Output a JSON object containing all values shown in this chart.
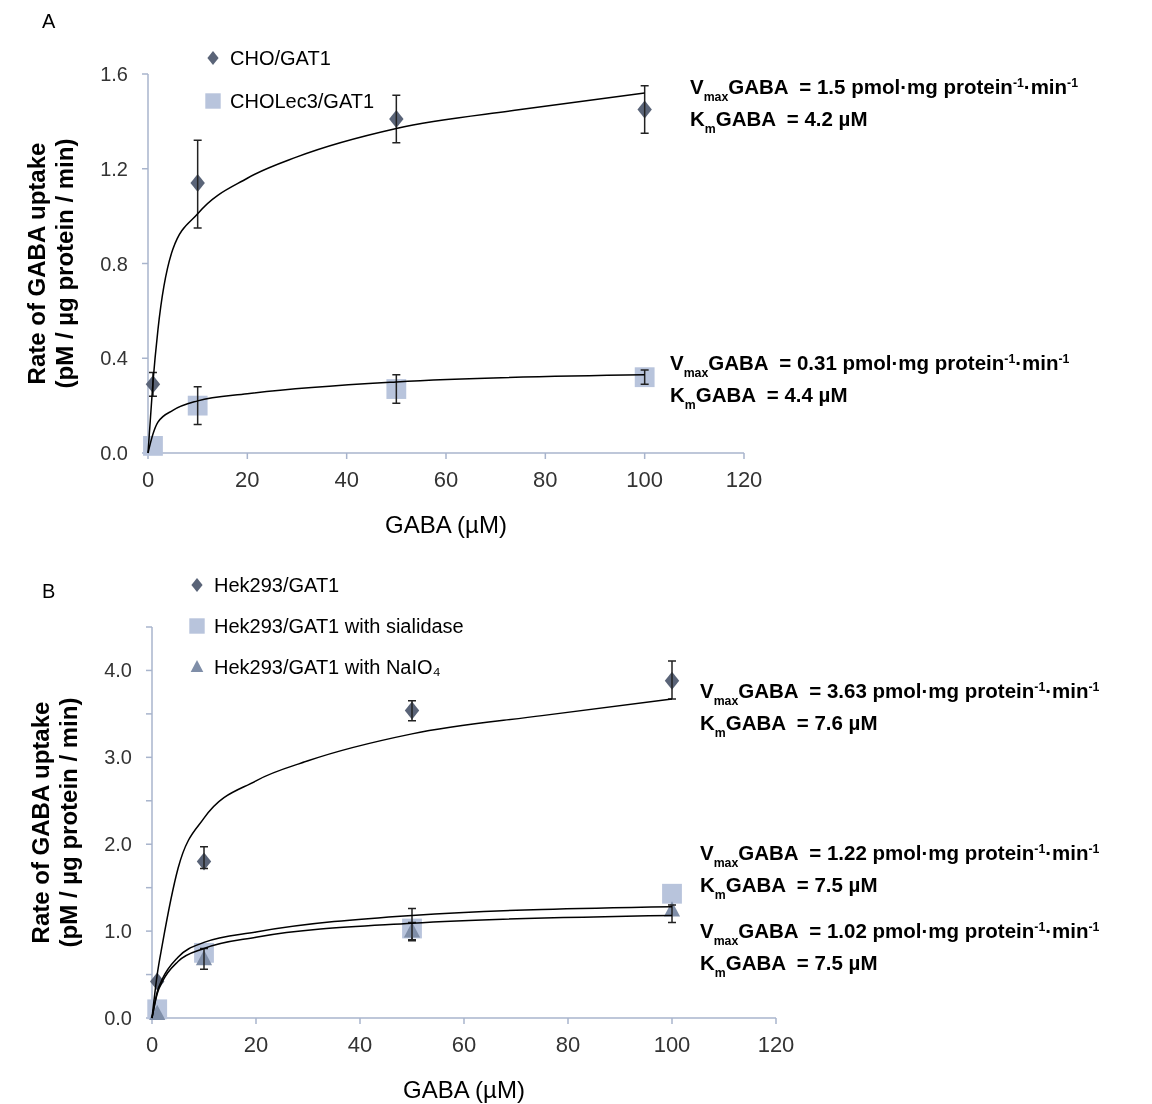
{
  "chart_data": [
    {
      "type": "scatter",
      "title": "A",
      "xlabel": "GABA (µM)",
      "ylabel": "Rate of GABA uptake\n(pM / µg protein / min)",
      "xlim": [
        0,
        120
      ],
      "xticks": [
        0,
        20,
        40,
        60,
        80,
        100,
        120
      ],
      "ylim": [
        0,
        1.6
      ],
      "yticks": [
        {
          "value": 0,
          "label": "0.0"
        },
        0.4,
        0.8,
        1.2,
        1.6
      ],
      "legend": "top left",
      "series": [
        {
          "name": "CHO/GAT1",
          "color": "#5a6478",
          "marker": "diamond",
          "x": [
            1,
            10,
            50,
            100
          ],
          "values": [
            0.29,
            1.14,
            1.41,
            1.45
          ],
          "errors": [
            [
              0.24,
              0.34
            ],
            [
              0.95,
              1.32
            ],
            [
              1.31,
              1.51
            ],
            [
              1.35,
              1.55
            ]
          ]
        },
        {
          "name": "CHOLec3/GAT1",
          "color": "#b8c4dc",
          "marker": "square",
          "x": [
            1,
            10,
            50,
            100
          ],
          "values": [
            0.03,
            0.2,
            0.27,
            0.32
          ],
          "errors": [
            null,
            [
              0.12,
              0.28
            ],
            [
              0.21,
              0.33
            ],
            [
              0.29,
              0.35
            ]
          ]
        },
        {
          "type": "line",
          "color": "#000000",
          "marker": "none",
          "x": [
            0,
            1,
            2,
            5,
            10,
            20,
            30,
            50,
            75,
            100
          ],
          "values": [
            0,
            0.3,
            0.52,
            0.86,
            1.01,
            1.16,
            1.25,
            1.37,
            1.45,
            1.52
          ]
        },
        {
          "type": "line",
          "color": "#000000",
          "marker": "none",
          "x": [
            0,
            1,
            2,
            5,
            10,
            20,
            50,
            100
          ],
          "values": [
            0,
            0.08,
            0.13,
            0.18,
            0.22,
            0.25,
            0.3,
            0.33
          ]
        }
      ],
      "annotations": [
        "V$_{max}$GABA  = 1.5 pmol·mg protein$^{-1}$·min$^{-1}$",
        "K$_{m}$GABA  = 4.2 µM",
        "V$_{max}$GABA  = 0.31 pmol·mg protein$^{-1}$·min$^{-1}$",
        "K$_{m}$GABA  = 4.4 µM"
      ]
    },
    {
      "type": "scatter",
      "title": "B",
      "xlabel": "GABA (µM)",
      "ylabel": "Rate of GABA uptake\n(pM / µg protein / min)",
      "xlim": [
        0,
        120
      ],
      "xticks": [
        0,
        20,
        40,
        60,
        80,
        100,
        120
      ],
      "ylim": [
        0,
        4.5
      ],
      "yticks": [
        {
          "value": 0,
          "label": "0.0"
        },
        {
          "value": 0.5,
          "label": null
        },
        {
          "value": 1,
          "label": "1.0"
        },
        {
          "value": 1.5,
          "label": null
        },
        {
          "value": 2,
          "label": "2.0"
        },
        {
          "value": 2.5,
          "label": null
        },
        {
          "value": 3,
          "label": "3.0"
        },
        {
          "value": 3.5,
          "label": null
        },
        {
          "value": 4,
          "label": "4.0"
        },
        {
          "value": 4.5,
          "label": null
        }
      ],
      "legend": "top left",
      "series": [
        {
          "name": "Hek293/GAT1",
          "color": "#5a6478",
          "marker": "diamond",
          "x": [
            1,
            10,
            50,
            100
          ],
          "values": [
            0.42,
            1.8,
            3.54,
            3.88
          ],
          "errors": [
            null,
            [
              1.72,
              1.97
            ],
            [
              3.42,
              3.65
            ],
            [
              3.67,
              4.11
            ]
          ]
        },
        {
          "name": "Hek293/GAT1 with sialidase",
          "color": "#b8c4dc",
          "marker": "square",
          "x": [
            1,
            10,
            50,
            100
          ],
          "values": [
            0.1,
            0.75,
            1.03,
            1.43
          ],
          "errors": [
            null,
            null,
            [
              0.9,
              1.26
            ],
            null
          ]
        },
        {
          "name": "Hek293/GAT1 with NaIO₄",
          "color": "#7f8ea8",
          "marker": "triangle",
          "x": [
            1,
            10,
            50,
            100
          ],
          "values": [
            0.05,
            0.68,
            1.0,
            1.24
          ],
          "errors": [
            null,
            [
              0.56,
              0.8
            ],
            [
              0.89,
              1.1
            ],
            [
              1.1,
              1.3
            ]
          ]
        },
        {
          "type": "line",
          "color": "#000000",
          "marker": "none",
          "x": [
            0,
            1,
            2,
            5,
            10,
            20,
            30,
            50,
            75,
            100
          ],
          "values": [
            0,
            0.5,
            0.85,
            1.72,
            2.3,
            2.73,
            2.96,
            3.27,
            3.48,
            3.67
          ]
        },
        {
          "type": "line",
          "color": "#000000",
          "marker": "none",
          "x": [
            0,
            1,
            2,
            5,
            10,
            20,
            50,
            100
          ],
          "values": [
            0,
            0.3,
            0.45,
            0.7,
            0.87,
            0.99,
            1.18,
            1.28
          ]
        },
        {
          "type": "line",
          "color": "#000000",
          "marker": "none",
          "x": [
            0,
            1,
            2,
            5,
            10,
            20,
            50,
            100
          ],
          "values": [
            0,
            0.28,
            0.42,
            0.65,
            0.8,
            0.93,
            1.09,
            1.18
          ]
        }
      ],
      "annotations": [
        "V$_{max}$GABA  = 3.63 pmol·mg protein$^{-1}$·min$^{-1}$",
        "K$_{m}$GABA  = 7.6 µM",
        "V$_{max}$GABA  = 1.22 pmol·mg protein$^{-1}$·min$^{-1}$",
        "K$_{m}$GABA  = 7.5 µM",
        "V$_{max}$GABA  = 1.02 pmol·mg protein$^{-1}$·min$^{-1}$",
        "K$_{m}$GABA  = 7.5 µM"
      ]
    }
  ]
}
